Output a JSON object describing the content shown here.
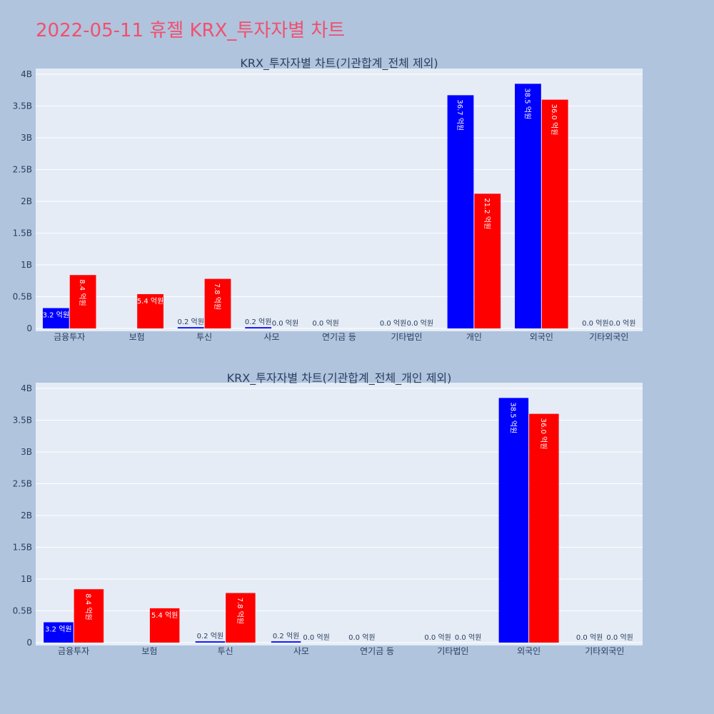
{
  "page": {
    "title": "2022-05-11 휴젤 KRX_투자자별 차트"
  },
  "colors": {
    "buy": "#0000ff",
    "sell": "#ff0000",
    "plot_bg": "#e5ecf6",
    "page_bg": "#b0c4de"
  },
  "chart_data": [
    {
      "type": "bar",
      "title": "KRX_투자자별 차트(기관합계_전체 제외)",
      "xlabel": "",
      "ylabel": "",
      "ylim": [
        0,
        4000000000
      ],
      "yticks": [
        0,
        500000000,
        1000000000,
        1500000000,
        2000000000,
        2500000000,
        3000000000,
        3500000000,
        4000000000
      ],
      "ytick_labels": [
        "0",
        "0.5B",
        "1B",
        "1.5B",
        "2B",
        "2.5B",
        "3B",
        "3.5B",
        "4B"
      ],
      "grid": true,
      "categories": [
        "금융투자",
        "보험",
        "투신",
        "사모",
        "연기금 등",
        "기타법인",
        "개인",
        "외국인",
        "기타외국인"
      ],
      "series": [
        {
          "values": [
            320000000,
            0,
            20000000,
            20000000,
            0,
            0,
            3670000000,
            3850000000,
            0
          ],
          "labels": [
            "3.2 억원",
            "",
            "0.2 억원",
            "0.2 억원",
            "0.0 억원",
            "0.0 억원",
            "36.7 억원",
            "38.5 억원",
            "0.0 억원"
          ]
        },
        {
          "values": [
            840000000,
            540000000,
            780000000,
            0,
            0,
            0,
            2120000000,
            3600000000,
            0
          ],
          "labels": [
            "8.4 억원",
            "5.4 억원",
            "7.8 억원",
            "0.0 억원",
            "",
            "0.0 억원",
            "21.2 억원",
            "36.0 억원",
            "0.0 억원"
          ]
        }
      ]
    },
    {
      "type": "bar",
      "title": "KRX_투자자별 차트(기관합계_전체_개인 제외)",
      "xlabel": "",
      "ylabel": "",
      "ylim": [
        0,
        4000000000
      ],
      "yticks": [
        0,
        500000000,
        1000000000,
        1500000000,
        2000000000,
        2500000000,
        3000000000,
        3500000000,
        4000000000
      ],
      "ytick_labels": [
        "0",
        "0.5B",
        "1B",
        "1.5B",
        "2B",
        "2.5B",
        "3B",
        "3.5B",
        "4B"
      ],
      "grid": true,
      "categories": [
        "금융투자",
        "보험",
        "투신",
        "사모",
        "연기금 등",
        "기타법인",
        "외국인",
        "기타외국인"
      ],
      "series": [
        {
          "values": [
            320000000,
            0,
            20000000,
            20000000,
            0,
            0,
            3850000000,
            0
          ],
          "labels": [
            "3.2 억원",
            "",
            "0.2 억원",
            "0.2 억원",
            "0.0 억원",
            "0.0 억원",
            "38.5 억원",
            "0.0 억원"
          ]
        },
        {
          "values": [
            840000000,
            540000000,
            780000000,
            0,
            0,
            0,
            3600000000,
            0
          ],
          "labels": [
            "8.4 억원",
            "5.4 억원",
            "7.8 억원",
            "0.0 억원",
            "",
            "0.0 억원",
            "36.0 억원",
            "0.0 억원"
          ]
        }
      ]
    }
  ]
}
